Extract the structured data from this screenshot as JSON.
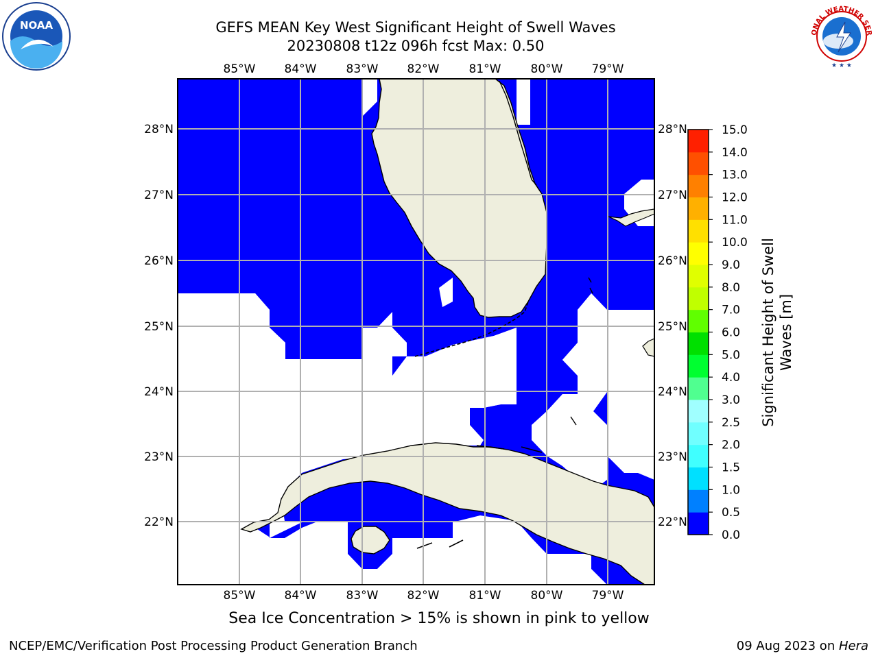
{
  "header": {
    "title_line1": "GEFS MEAN Key West Significant Height of Swell Waves",
    "title_line2": "20230808 t12z 096h fcst   Max: 0.50"
  },
  "map": {
    "lon_labels": [
      "85°W",
      "84°W",
      "83°W",
      "82°W",
      "81°W",
      "80°W",
      "79°W"
    ],
    "lat_labels": [
      "28°N",
      "27°N",
      "26°N",
      "25°N",
      "24°N",
      "23°N",
      "22°N"
    ],
    "colors": {
      "ocean": "#0000ff",
      "land": "#eeeedd",
      "no_data": "#ffffff",
      "grid": "#b0b0b0"
    }
  },
  "colorbar": {
    "label_line1": "Significant Height of Swell",
    "label_line2": "Waves [m]",
    "ticks": [
      "0.0",
      "0.5",
      "1.0",
      "1.5",
      "2.0",
      "2.5",
      "3.0",
      "4.0",
      "5.0",
      "6.0",
      "7.0",
      "8.0",
      "9.0",
      "10.0",
      "11.0",
      "12.0",
      "13.0",
      "14.0",
      "15.0"
    ],
    "colors": [
      "#0000ff",
      "#0080ff",
      "#00e0ff",
      "#40ffff",
      "#70ffff",
      "#a0ffff",
      "#50ff90",
      "#00ff30",
      "#00e000",
      "#60ff00",
      "#c0ff00",
      "#e0ff00",
      "#ffff00",
      "#ffe000",
      "#ffb000",
      "#ff8000",
      "#ff5000",
      "#ff2000",
      "#ff0000"
    ]
  },
  "logos": {
    "noaa_text": "NOAA",
    "nws_text": "NATIONAL WEATHER SERVICE"
  },
  "footer": {
    "caption": "Sea Ice Concentration > 15% is shown in pink to yellow",
    "left": "NCEP/EMC/Verification Post Processing Product Generation Branch",
    "right_prefix": "09 Aug 2023 on ",
    "right_host": "Hera"
  }
}
